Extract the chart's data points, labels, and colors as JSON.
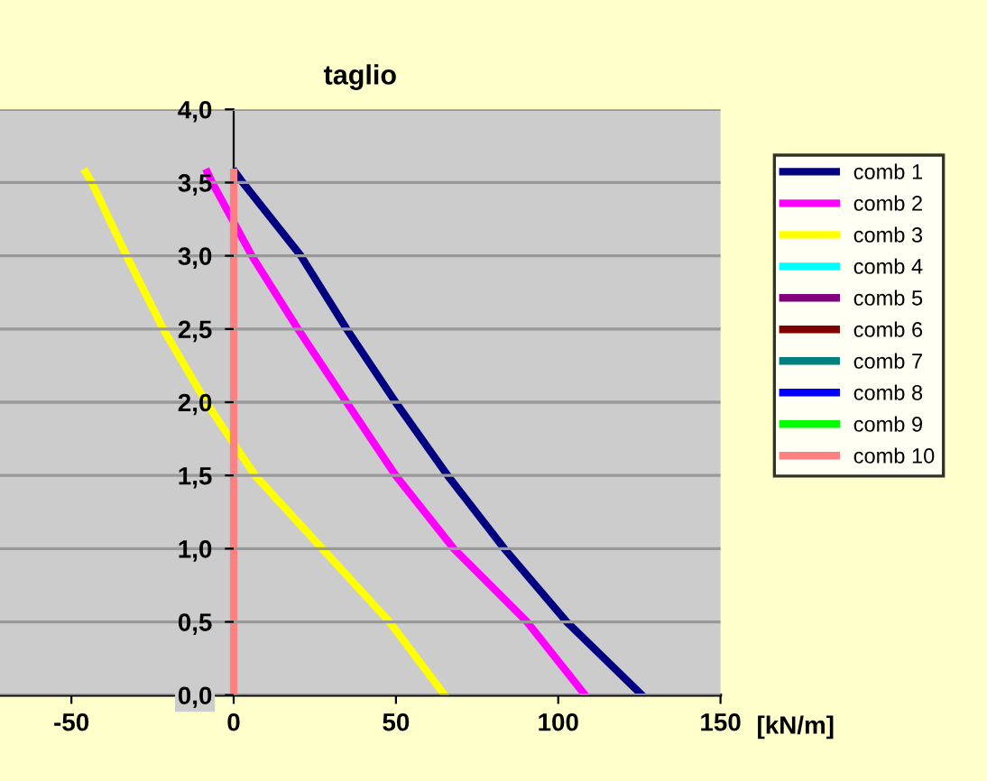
{
  "chart_data": {
    "type": "line",
    "title": "taglio",
    "xlabel": "[kN/m]",
    "xlim": [
      -72,
      150
    ],
    "xticks": [
      -50,
      0,
      50,
      100,
      150
    ],
    "ylim": [
      0,
      4
    ],
    "yticks": [
      {
        "value": 0,
        "label": "0,0"
      },
      {
        "value": 0.5,
        "label": "0,5"
      },
      {
        "value": 1,
        "label": "1,0"
      },
      {
        "value": 1.5,
        "label": "1,5"
      },
      {
        "value": 2,
        "label": "2,0"
      },
      {
        "value": 2.5,
        "label": "2,5"
      },
      {
        "value": 3,
        "label": "3,0"
      },
      {
        "value": 3.5,
        "label": "3,5"
      },
      {
        "value": 4,
        "label": "4,0"
      }
    ],
    "grid": "y",
    "legend": "right",
    "marker": "none",
    "line_style": "solid",
    "series": [
      {
        "name": "comb 1",
        "color": "#000080",
        "x": [
          125.8,
          102.6,
          83.4,
          65.9,
          49.9,
          34.8,
          20.7,
          2.8,
          0.5
        ],
        "values": [
          0,
          0.5,
          1.0,
          1.5,
          2.0,
          2.5,
          3.0,
          3.5,
          3.57
        ]
      },
      {
        "name": "comb 2",
        "color": "#ff00ff",
        "x": [
          108.3,
          90.4,
          67.8,
          49.9,
          34.8,
          19.8,
          5.6,
          -6.6,
          -8.1
        ],
        "values": [
          0,
          0.5,
          1.0,
          1.5,
          2.0,
          2.5,
          3.0,
          3.5,
          3.57
        ]
      },
      {
        "name": "comb 3",
        "color": "#ffff00",
        "x": [
          65,
          48,
          27.3,
          6.6,
          -8.5,
          -21.7,
          -33,
          -43.7,
          -45.6
        ],
        "values": [
          0,
          0.5,
          1.0,
          1.5,
          2.0,
          2.5,
          3.0,
          3.5,
          3.57
        ]
      },
      {
        "name": "comb 4",
        "color": "#00ffff"
      },
      {
        "name": "comb 5",
        "color": "#800080"
      },
      {
        "name": "comb 6",
        "color": "#800000"
      },
      {
        "name": "comb 7",
        "color": "#008080"
      },
      {
        "name": "comb 8",
        "color": "#0000ff"
      },
      {
        "name": "comb 9",
        "color": "#00ff00"
      },
      {
        "name": "comb 10",
        "color": "#ff8080",
        "x": [
          0,
          0
        ],
        "values": [
          0,
          3.57
        ]
      }
    ]
  }
}
